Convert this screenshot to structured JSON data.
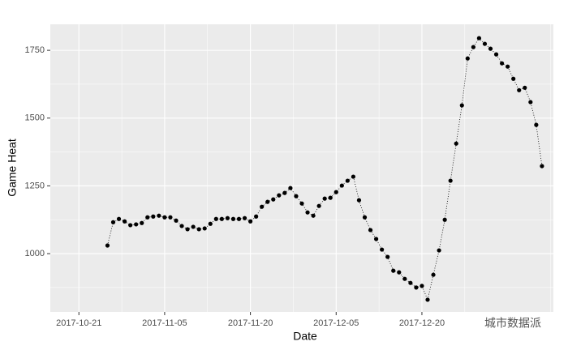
{
  "chart_data": {
    "type": "line",
    "x_label": "Date",
    "y_label": "Game Heat",
    "watermark": "城市数据派",
    "x": [
      "2017-10-26",
      "2017-10-27",
      "2017-10-28",
      "2017-10-29",
      "2017-10-30",
      "2017-10-31",
      "2017-11-01",
      "2017-11-02",
      "2017-11-03",
      "2017-11-04",
      "2017-11-05",
      "2017-11-06",
      "2017-11-07",
      "2017-11-08",
      "2017-11-09",
      "2017-11-10",
      "2017-11-11",
      "2017-11-12",
      "2017-11-13",
      "2017-11-14",
      "2017-11-15",
      "2017-11-16",
      "2017-11-17",
      "2017-11-18",
      "2017-11-19",
      "2017-11-20",
      "2017-11-21",
      "2017-11-22",
      "2017-11-23",
      "2017-11-24",
      "2017-11-25",
      "2017-11-26",
      "2017-11-27",
      "2017-11-28",
      "2017-11-29",
      "2017-11-30",
      "2017-12-01",
      "2017-12-02",
      "2017-12-03",
      "2017-12-04",
      "2017-12-05",
      "2017-12-06",
      "2017-12-07",
      "2017-12-08",
      "2017-12-09",
      "2017-12-10",
      "2017-12-11",
      "2017-12-12",
      "2017-12-13",
      "2017-12-14",
      "2017-12-15",
      "2017-12-16",
      "2017-12-17",
      "2017-12-18",
      "2017-12-19",
      "2017-12-20",
      "2017-12-21",
      "2017-12-22",
      "2017-12-23",
      "2017-12-24",
      "2017-12-25",
      "2017-12-26",
      "2017-12-27",
      "2017-12-28",
      "2017-12-29",
      "2017-12-30",
      "2017-12-31",
      "2018-01-01",
      "2018-01-02",
      "2018-01-03",
      "2018-01-04",
      "2018-01-05",
      "2018-01-06",
      "2018-01-07",
      "2018-01-08",
      "2018-01-09",
      "2018-01-10"
    ],
    "series": [
      {
        "name": "Game Heat",
        "color": "#000000",
        "values": [
          1030,
          1116,
          1128,
          1119,
          1105,
          1108,
          1113,
          1134,
          1137,
          1140,
          1134,
          1134,
          1122,
          1102,
          1090,
          1099,
          1090,
          1093,
          1110,
          1128,
          1128,
          1131,
          1128,
          1128,
          1131,
          1119,
          1137,
          1173,
          1191,
          1200,
          1215,
          1224,
          1242,
          1212,
          1185,
          1152,
          1140,
          1176,
          1203,
          1206,
          1227,
          1251,
          1269,
          1284,
          1197,
          1134,
          1087,
          1054,
          1015,
          988,
          937,
          931,
          907,
          892,
          875,
          881,
          830,
          922,
          1012,
          1125,
          1269,
          1406,
          1547,
          1720,
          1762,
          1795,
          1774,
          1756,
          1735,
          1702,
          1690,
          1645,
          1603,
          1612,
          1559,
          1475,
          1323
        ]
      }
    ],
    "xlim": [
      "2017-10-16",
      "2018-01-12"
    ],
    "xticks": [
      "2017-10-21",
      "2017-11-05",
      "2017-11-20",
      "2017-12-05",
      "2017-12-20"
    ],
    "ylim": [
      785,
      1846
    ],
    "yticks": [
      1000,
      1250,
      1500,
      1750
    ],
    "grid": true
  }
}
